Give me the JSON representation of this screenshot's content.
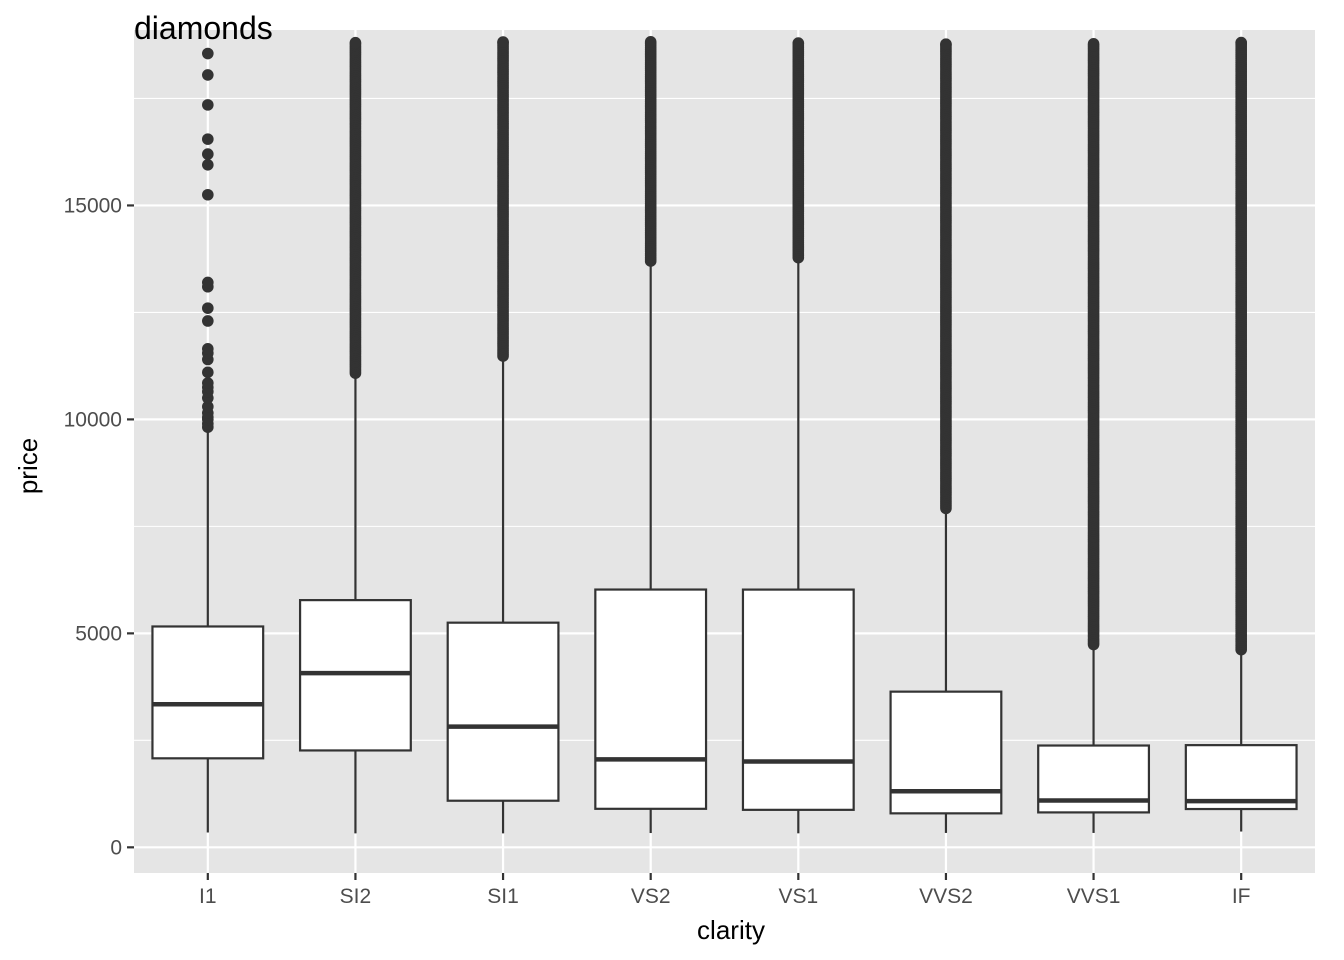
{
  "colors": {
    "panel": "#e5e5e5",
    "grid": "#ffffff",
    "box_fill": "#ffffff",
    "box_line": "#333333",
    "outlier": "#333333",
    "tick_label": "#4d4d4d"
  },
  "chart_data": {
    "type": "boxplot",
    "title": "diamonds",
    "xlabel": "clarity",
    "ylabel": "price",
    "ylim": [
      -600,
      19100
    ],
    "yticks": [
      0,
      5000,
      10000,
      15000
    ],
    "grid": true,
    "categories": [
      "I1",
      "SI2",
      "SI1",
      "VS2",
      "VS1",
      "VVS2",
      "VVS1",
      "IF"
    ],
    "boxes": [
      {
        "category": "I1",
        "whisker_low": 345,
        "q1": 2080,
        "median": 3344,
        "q3": 5161,
        "whisker_high": 9700,
        "outliers": [
          9820,
          9900,
          10000,
          10050,
          10150,
          10300,
          10500,
          10650,
          10750,
          10850,
          11100,
          11400,
          11550,
          11650,
          12300,
          12600,
          13100,
          13200,
          15250,
          15950,
          16200,
          16550,
          17350,
          18050,
          18550
        ]
      },
      {
        "category": "SI2",
        "whisker_low": 326,
        "q1": 2264,
        "median": 4072,
        "q3": 5777,
        "whisker_high": 11050,
        "outlier_range": [
          11080,
          18804
        ]
      },
      {
        "category": "SI1",
        "whisker_low": 326,
        "q1": 1089,
        "median": 2822,
        "q3": 5250,
        "whisker_high": 11450,
        "outlier_range": [
          11480,
          18818
        ]
      },
      {
        "category": "VS2",
        "whisker_low": 334,
        "q1": 900,
        "median": 2054,
        "q3": 6024,
        "whisker_high": 13650,
        "outlier_range": [
          13700,
          18823
        ]
      },
      {
        "category": "VS1",
        "whisker_low": 327,
        "q1": 876,
        "median": 2005,
        "q3": 6023,
        "whisker_high": 13750,
        "outlier_range": [
          13780,
          18795
        ]
      },
      {
        "category": "VVS2",
        "whisker_low": 336,
        "q1": 794,
        "median": 1311,
        "q3": 3638,
        "whisker_high": 7900,
        "outlier_range": [
          7920,
          18768
        ]
      },
      {
        "category": "VVS1",
        "whisker_low": 336,
        "q1": 816,
        "median": 1093,
        "q3": 2379,
        "whisker_high": 4720,
        "outlier_range": [
          4740,
          18777
        ]
      },
      {
        "category": "IF",
        "whisker_low": 369,
        "q1": 895,
        "median": 1080,
        "q3": 2388,
        "whisker_high": 4600,
        "outlier_range": [
          4620,
          18806
        ]
      }
    ]
  }
}
